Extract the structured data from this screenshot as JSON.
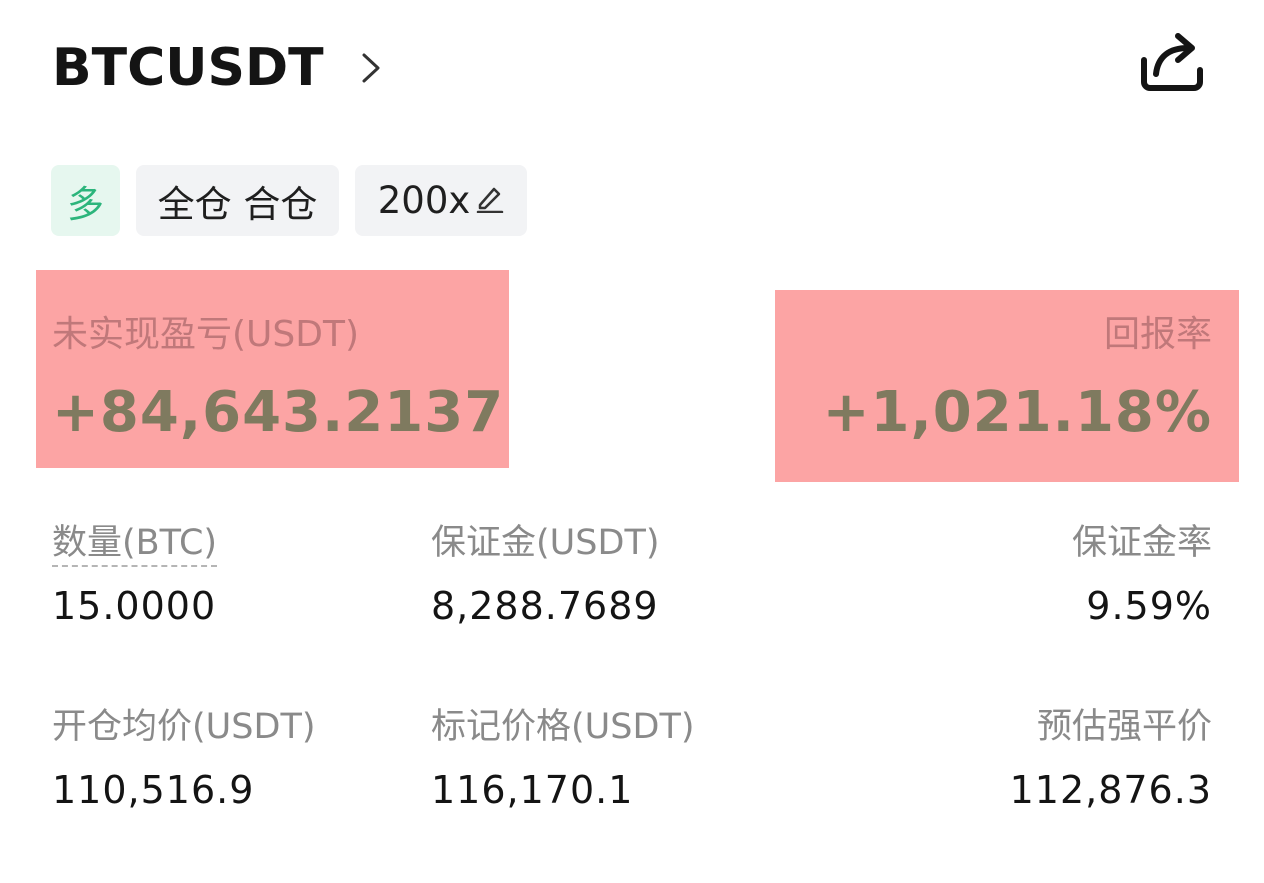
{
  "header": {
    "symbol": "BTCUSDT",
    "chevron_icon": "chevron-right-icon",
    "share_icon": "share-icon"
  },
  "tags": {
    "side": "多",
    "margin_mode": "全仓 合仓",
    "leverage": "200x",
    "edit_icon": "pencil-icon"
  },
  "pnl": {
    "label": "未实现盈亏(USDT)",
    "value": "+84,643.2137"
  },
  "roe": {
    "label": "回报率",
    "value": "+1,021.18%"
  },
  "fields": {
    "quantity": {
      "label": "数量(BTC)",
      "value": "15.0000"
    },
    "margin": {
      "label": "保证金(USDT)",
      "value": "8,288.7689"
    },
    "margin_ratio": {
      "label": "保证金率",
      "value": "9.59%"
    },
    "entry_price": {
      "label": "开仓均价(USDT)",
      "value": "110,516.9"
    },
    "mark_price": {
      "label": "标记价格(USDT)",
      "value": "116,170.1"
    },
    "liq_price": {
      "label": "预估强平价",
      "value": "112,876.3"
    }
  },
  "colors": {
    "long_green": "#2cb57c",
    "highlight": "#fca4a4",
    "label_gray": "#8a8a8a"
  }
}
